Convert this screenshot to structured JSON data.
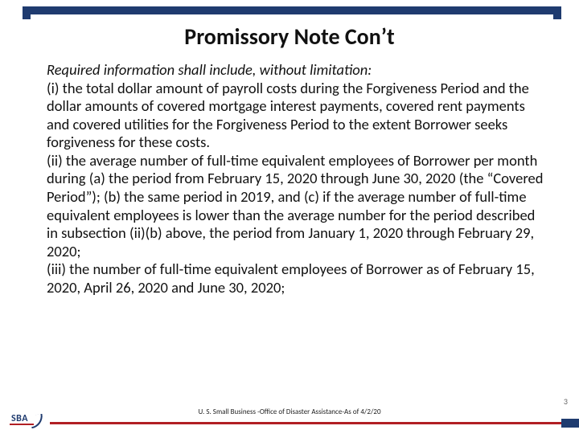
{
  "colors": {
    "brand_navy": "#1f3b6f",
    "accent_red": "#b11f24",
    "text": "#111111",
    "footer_text": "#222222",
    "page_num": "#666666",
    "background": "#ffffff"
  },
  "title": "Promissory Note Con’t",
  "lead": "Required information shall include, without limitation:",
  "items": [
    "(i) the total dollar amount of payroll costs during the Forgiveness Period and the dollar amounts of covered mortgage interest payments, covered rent payments and covered utilities for the Forgiveness Period to the extent Borrower seeks forgiveness for these costs.",
    "(ii) the average number of full-time equivalent employees of Borrower per month during (a) the period from February 15, 2020 through June 30, 2020 (the “Covered Period”); (b) the same period in 2019, and (c) if the average number of full-time equivalent employees is lower than the average number for the period described in subsection (ii)(b) above, the period from January 1, 2020 through February 29, 2020;",
    "(iii) the number of full-time equivalent employees of Borrower as of February 15, 2020, April 26, 2020 and June 30, 2020;"
  ],
  "footer": "U. S. Small Business -Office of Disaster Assistance-As of 4/2/20",
  "page_number": "3",
  "logo_text": "SBA"
}
